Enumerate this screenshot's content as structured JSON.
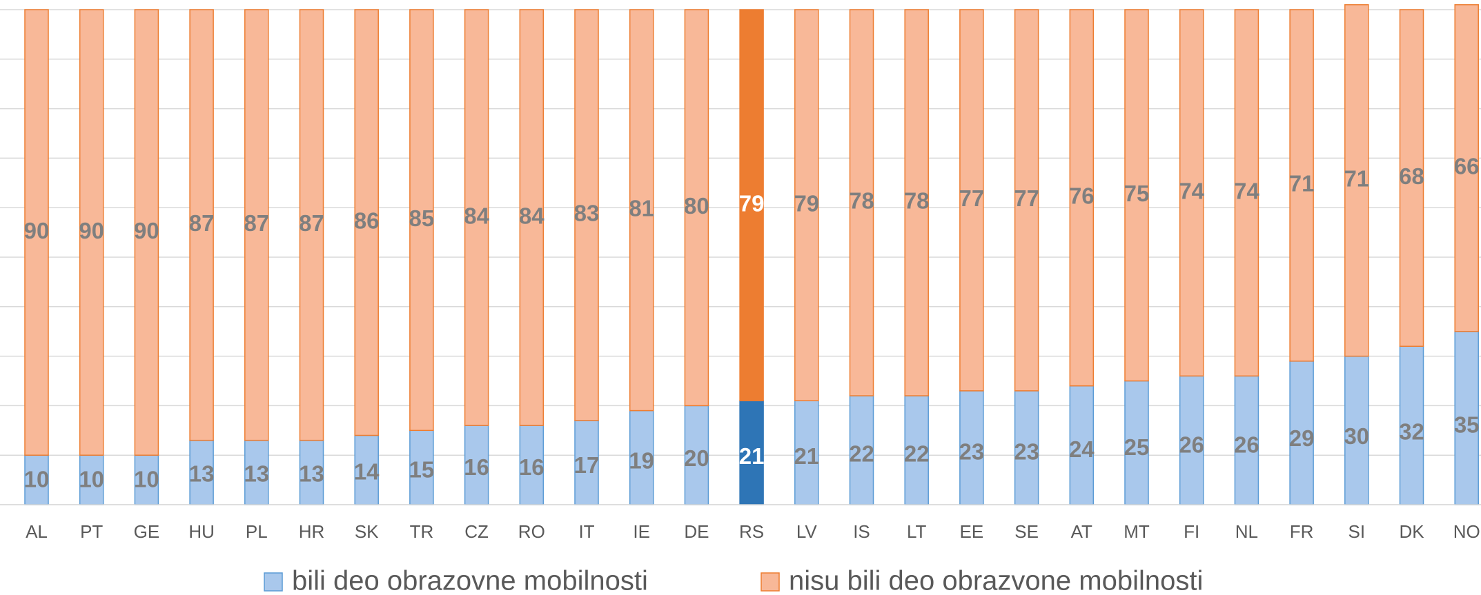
{
  "chart_data": {
    "type": "stacked_bar",
    "categories": [
      "AL",
      "PT",
      "GE",
      "HU",
      "PL",
      "HR",
      "SK",
      "TR",
      "CZ",
      "RO",
      "IT",
      "IE",
      "DE",
      "RS",
      "LV",
      "IS",
      "LT",
      "EE",
      "SE",
      "AT",
      "MT",
      "FI",
      "NL",
      "FR",
      "SI",
      "DK",
      "NO"
    ],
    "series": [
      {
        "name": "bili deo obrazovne mobilnosti",
        "color": "#a9c8ec",
        "border": "#5b9bd5",
        "highlight_color": "#2e75b6",
        "values": [
          10,
          10,
          10,
          13,
          13,
          13,
          14,
          15,
          16,
          16,
          17,
          19,
          20,
          21,
          21,
          22,
          22,
          23,
          23,
          24,
          25,
          26,
          26,
          29,
          30,
          32,
          35
        ]
      },
      {
        "name": "nisu bili deo obrazvone mobilnosti",
        "color": "#f8b898",
        "border": "#ed7d31",
        "highlight_color": "#ed7d31",
        "values": [
          90,
          90,
          90,
          87,
          87,
          87,
          86,
          85,
          84,
          84,
          83,
          81,
          80,
          79,
          79,
          78,
          78,
          77,
          77,
          76,
          75,
          74,
          74,
          71,
          71,
          68,
          66
        ]
      }
    ],
    "highlight_index": 13,
    "ylim": [
      0,
      100
    ],
    "yticks": [
      0,
      10,
      20,
      30,
      40,
      50,
      60,
      70,
      80,
      90,
      100
    ],
    "grid": true,
    "legend": "bottom"
  }
}
